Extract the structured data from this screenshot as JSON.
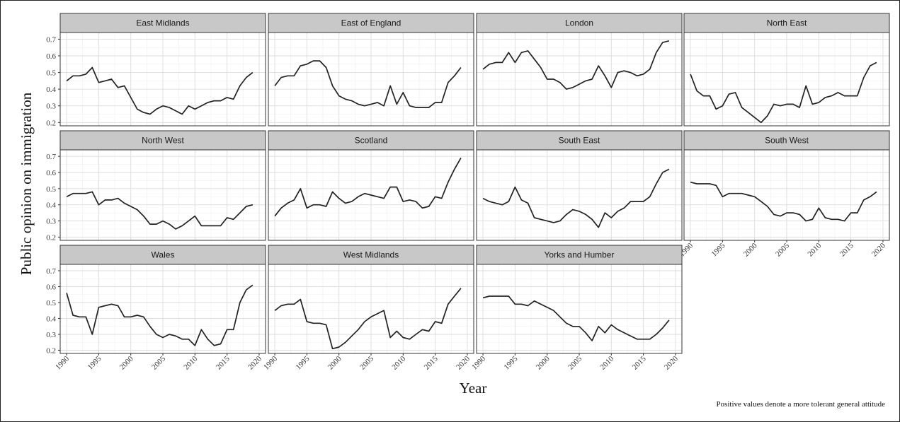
{
  "chart_data": {
    "type": "line",
    "xlabel": "Year",
    "ylabel": "Public opinion on immigration",
    "note": "Positive values denote a more tolerant general attitude",
    "xlim": [
      1989,
      2021
    ],
    "ylim": [
      0.18,
      0.74
    ],
    "x_ticks": [
      1990,
      1995,
      2000,
      2005,
      2010,
      2015,
      2020
    ],
    "y_ticks": [
      0.2,
      0.3,
      0.4,
      0.5,
      0.6,
      0.7
    ],
    "grid": true,
    "years": [
      1990,
      1991,
      1992,
      1993,
      1994,
      1995,
      1996,
      1997,
      1998,
      1999,
      2000,
      2001,
      2002,
      2003,
      2004,
      2005,
      2006,
      2007,
      2008,
      2009,
      2010,
      2011,
      2012,
      2013,
      2014,
      2015,
      2016,
      2017,
      2018,
      2019
    ],
    "panels": [
      {
        "title": "East Midlands",
        "values": [
          0.45,
          0.48,
          0.48,
          0.49,
          0.53,
          0.44,
          0.45,
          0.46,
          0.41,
          0.42,
          0.35,
          0.28,
          0.26,
          0.25,
          0.28,
          0.3,
          0.29,
          0.27,
          0.25,
          0.3,
          0.28,
          0.3,
          0.32,
          0.33,
          0.33,
          0.35,
          0.34,
          0.42,
          0.47,
          0.5
        ]
      },
      {
        "title": "East of England",
        "values": [
          0.42,
          0.47,
          0.48,
          0.48,
          0.54,
          0.55,
          0.57,
          0.57,
          0.53,
          0.42,
          0.36,
          0.34,
          0.33,
          0.31,
          0.3,
          0.31,
          0.32,
          0.3,
          0.42,
          0.31,
          0.38,
          0.3,
          0.29,
          0.29,
          0.29,
          0.32,
          0.32,
          0.44,
          0.48,
          0.53
        ]
      },
      {
        "title": "London",
        "values": [
          0.52,
          0.55,
          0.56,
          0.56,
          0.62,
          0.56,
          0.62,
          0.63,
          0.58,
          0.53,
          0.46,
          0.46,
          0.44,
          0.4,
          0.41,
          0.43,
          0.45,
          0.46,
          0.54,
          0.48,
          0.41,
          0.5,
          0.51,
          0.5,
          0.48,
          0.49,
          0.52,
          0.62,
          0.68,
          0.69
        ]
      },
      {
        "title": "North East",
        "values": [
          0.49,
          0.39,
          0.36,
          0.36,
          0.28,
          0.3,
          0.37,
          0.38,
          0.29,
          0.26,
          0.23,
          0.2,
          0.24,
          0.31,
          0.3,
          0.31,
          0.31,
          0.29,
          0.42,
          0.31,
          0.32,
          0.35,
          0.36,
          0.38,
          0.36,
          0.36,
          0.36,
          0.47,
          0.54,
          0.56
        ]
      },
      {
        "title": "North West",
        "values": [
          0.45,
          0.47,
          0.47,
          0.47,
          0.48,
          0.4,
          0.43,
          0.43,
          0.44,
          0.41,
          0.39,
          0.37,
          0.33,
          0.28,
          0.28,
          0.3,
          0.28,
          0.25,
          0.27,
          0.3,
          0.33,
          0.27,
          0.27,
          0.27,
          0.27,
          0.32,
          0.31,
          0.35,
          0.39,
          0.4
        ]
      },
      {
        "title": "Scotland",
        "values": [
          0.33,
          0.38,
          0.41,
          0.43,
          0.5,
          0.38,
          0.4,
          0.4,
          0.39,
          0.48,
          0.44,
          0.41,
          0.42,
          0.45,
          0.47,
          0.46,
          0.45,
          0.44,
          0.51,
          0.51,
          0.42,
          0.43,
          0.42,
          0.38,
          0.39,
          0.45,
          0.44,
          0.54,
          0.62,
          0.69
        ]
      },
      {
        "title": "South East",
        "values": [
          0.44,
          0.42,
          0.41,
          0.4,
          0.42,
          0.51,
          0.43,
          0.41,
          0.32,
          0.31,
          0.3,
          0.29,
          0.3,
          0.34,
          0.37,
          0.36,
          0.34,
          0.31,
          0.26,
          0.35,
          0.32,
          0.36,
          0.38,
          0.42,
          0.42,
          0.42,
          0.45,
          0.53,
          0.6,
          0.62
        ]
      },
      {
        "title": "South West",
        "values": [
          0.54,
          0.53,
          0.53,
          0.53,
          0.52,
          0.45,
          0.47,
          0.47,
          0.47,
          0.46,
          0.45,
          0.42,
          0.39,
          0.34,
          0.33,
          0.35,
          0.35,
          0.34,
          0.3,
          0.31,
          0.38,
          0.32,
          0.31,
          0.31,
          0.3,
          0.35,
          0.35,
          0.43,
          0.45,
          0.48
        ]
      },
      {
        "title": "Wales",
        "values": [
          0.56,
          0.42,
          0.41,
          0.41,
          0.3,
          0.47,
          0.48,
          0.49,
          0.48,
          0.41,
          0.41,
          0.42,
          0.41,
          0.35,
          0.3,
          0.28,
          0.3,
          0.29,
          0.27,
          0.27,
          0.23,
          0.33,
          0.27,
          0.23,
          0.24,
          0.33,
          0.33,
          0.5,
          0.58,
          0.61
        ]
      },
      {
        "title": "West Midlands",
        "values": [
          0.45,
          0.48,
          0.49,
          0.49,
          0.52,
          0.38,
          0.37,
          0.37,
          0.36,
          0.21,
          0.22,
          0.25,
          0.29,
          0.33,
          0.38,
          0.41,
          0.43,
          0.45,
          0.28,
          0.32,
          0.28,
          0.27,
          0.3,
          0.33,
          0.32,
          0.38,
          0.37,
          0.49,
          0.54,
          0.59
        ]
      },
      {
        "title": "Yorks and Humber",
        "values": [
          0.53,
          0.54,
          0.54,
          0.54,
          0.54,
          0.49,
          0.49,
          0.48,
          0.51,
          0.49,
          0.47,
          0.45,
          0.41,
          0.37,
          0.35,
          0.35,
          0.31,
          0.26,
          0.35,
          0.31,
          0.36,
          0.33,
          0.31,
          0.29,
          0.27,
          0.27,
          0.27,
          0.3,
          0.34,
          0.39
        ]
      }
    ],
    "colors": {
      "strip_fill": "#c8c8c8",
      "strip_border": "#333333",
      "line": "#222222",
      "grid_major": "#dcdcdc",
      "grid_minor": "#efefef",
      "panel_border": "#333333"
    }
  }
}
